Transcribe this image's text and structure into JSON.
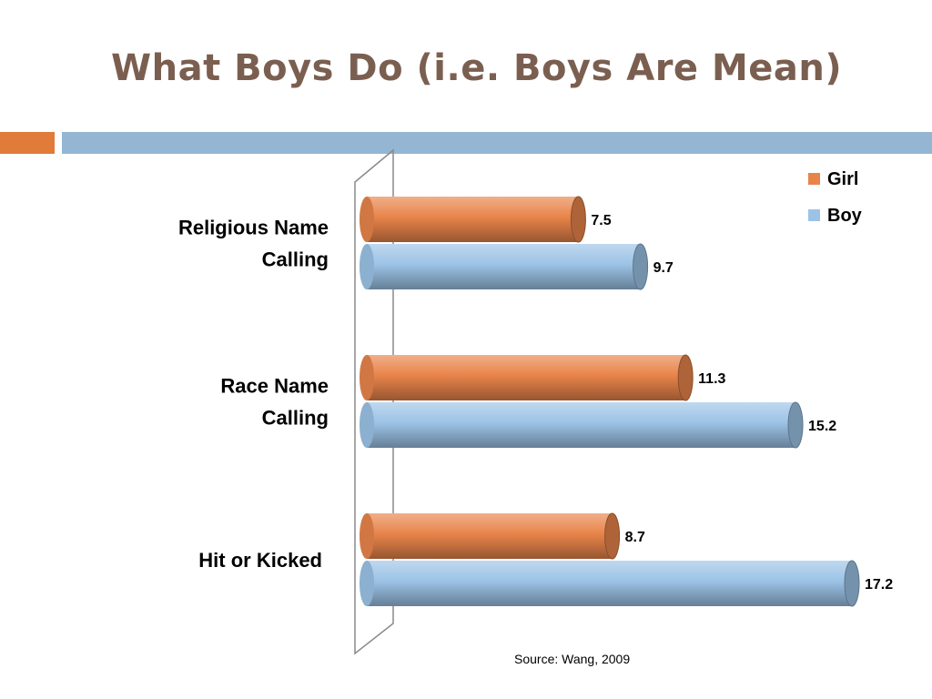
{
  "slide": {
    "title": "What Boys Do (i.e. Boys Are Mean)",
    "source": "Source: Wang, 2009",
    "accent_left_color": "#e07b39",
    "accent_right_color": "#94b6d2"
  },
  "chart_data": {
    "type": "bar",
    "orientation": "horizontal",
    "style": "3d-cylinder",
    "title": "",
    "xlabel": "",
    "ylabel": "",
    "categories": [
      [
        "Religious Name",
        "Calling"
      ],
      [
        "Race Name",
        "Calling"
      ],
      [
        "Hit or Kicked"
      ]
    ],
    "series": [
      {
        "name": "Girl",
        "color": "#e8844a",
        "values": [
          7.5,
          11.3,
          8.7
        ]
      },
      {
        "name": "Boy",
        "color": "#9cc3e6",
        "values": [
          9.7,
          15.2,
          17.2
        ]
      }
    ],
    "xlim": [
      0,
      17.2
    ],
    "grid": false,
    "legend_position": "top-right",
    "data_labels": true
  }
}
